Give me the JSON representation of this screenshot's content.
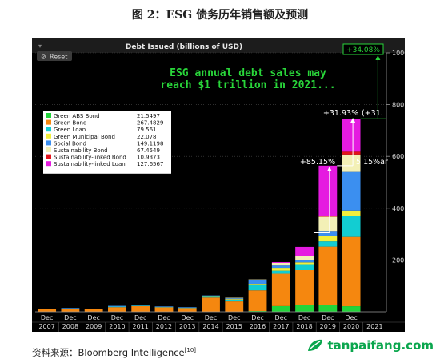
{
  "figure_title": "图 2：ESG 债务历年销售额及预测",
  "source": {
    "label": "资料来源：",
    "text": "Bloomberg Intelligence",
    "ref": "[10]"
  },
  "watermark": "tanpaifang.com",
  "toolbar": {
    "reset_label": "Reset"
  },
  "annotations": {
    "headline": "ESG annual debt sales may reach $1 trillion in 2021...",
    "headline_line1": "ESG annual debt sales may",
    "headline_line2": "reach $1 trillion in 2021...",
    "pct_2021": "+34.08%",
    "pct_2020": "+31.93%",
    "pct_2020_extra": "(+31.",
    "pct_2019": "+85.15%",
    "pct_2019_extra": "5.15%ar"
  },
  "colors": {
    "background": "#000000",
    "Green ABS Bond": "#22d43b",
    "Green Bond": "#f5870f",
    "Green Loan": "#12cdd2",
    "Green Municipal Bond": "#f2ef3b",
    "Social Bond": "#3b8ff0",
    "Sustainability Bond": "#f3f0b6",
    "Sustainability-linked Bond": "#e3141c",
    "Sustainability-linked Loan": "#e51be0",
    "annotation": "#29d63a"
  },
  "chart_data": {
    "type": "bar",
    "stacked": true,
    "title": "Debt Issued (billions of USD)",
    "categories": [
      "Dec 2007",
      "Dec 2008",
      "Dec 2009",
      "Dec 2010",
      "Dec 2011",
      "Dec 2012",
      "Dec 2013",
      "Dec 2014",
      "Dec 2015",
      "Dec 2016",
      "Dec 2017",
      "Dec 2018",
      "Dec 2019",
      "Dec 2020",
      "2021"
    ],
    "x_tick_top": [
      "Dec",
      "Dec",
      "Dec",
      "Dec",
      "Dec",
      "Dec",
      "Dec",
      "Dec",
      "Dec",
      "Dec",
      "Dec",
      "Dec",
      "Dec",
      "Dec",
      ""
    ],
    "x_tick_bottom": [
      "2007",
      "2008",
      "2009",
      "2010",
      "2011",
      "2012",
      "2013",
      "2014",
      "2015",
      "2016",
      "2017",
      "2018",
      "2019",
      "2020",
      "2021"
    ],
    "ylim": [
      0,
      1000
    ],
    "yticks": [
      200,
      400,
      600,
      800,
      1000
    ],
    "y_axis_side": "right",
    "legend_position": "left",
    "legend": [
      {
        "name": "Green ABS Bond",
        "value": "21.5497"
      },
      {
        "name": "Green Bond",
        "value": "267.4829"
      },
      {
        "name": "Green Loan",
        "value": "79.561"
      },
      {
        "name": "Green Municipal Bond",
        "value": "22.078"
      },
      {
        "name": "Social Bond",
        "value": "149.1198"
      },
      {
        "name": "Sustainability Bond",
        "value": "67.4549"
      },
      {
        "name": "Sustainability-linked Bond",
        "value": "10.9373"
      },
      {
        "name": "Sustainability-linked Loan",
        "value": "127.6567"
      }
    ],
    "series": [
      {
        "name": "Green ABS Bond",
        "values": [
          0,
          0,
          0,
          0,
          0,
          0,
          0,
          0,
          0,
          3,
          22,
          26,
          27,
          21.5,
          0
        ]
      },
      {
        "name": "Green Bond",
        "values": [
          10,
          12,
          10,
          18,
          22,
          18,
          15,
          55,
          40,
          80,
          125,
          135,
          225,
          267.5,
          0
        ]
      },
      {
        "name": "Green Loan",
        "values": [
          0,
          1,
          0,
          2,
          2,
          1,
          1,
          3,
          6,
          20,
          12,
          20,
          20,
          79.6,
          0
        ]
      },
      {
        "name": "Green Municipal Bond",
        "values": [
          0,
          0,
          0,
          0,
          0,
          0,
          0,
          2,
          3,
          4,
          8,
          10,
          20,
          22.1,
          0
        ]
      },
      {
        "name": "Social Bond",
        "values": [
          2,
          2,
          2,
          3,
          3,
          2,
          2,
          3,
          3,
          15,
          12,
          10,
          20,
          149.1,
          0
        ]
      },
      {
        "name": "Sustainability Bond",
        "values": [
          0,
          0,
          0,
          0,
          0,
          0,
          0,
          0,
          2,
          3,
          10,
          15,
          55,
          67.5,
          0
        ]
      },
      {
        "name": "Sustainability-linked Bond",
        "values": [
          0,
          0,
          0,
          0,
          0,
          0,
          0,
          0,
          0,
          0,
          0,
          0,
          2,
          10.9,
          0
        ]
      },
      {
        "name": "Sustainability-linked Loan",
        "values": [
          0,
          0,
          0,
          0,
          0,
          0,
          0,
          0,
          0,
          0,
          3,
          35,
          195,
          127.7,
          0
        ]
      }
    ]
  }
}
